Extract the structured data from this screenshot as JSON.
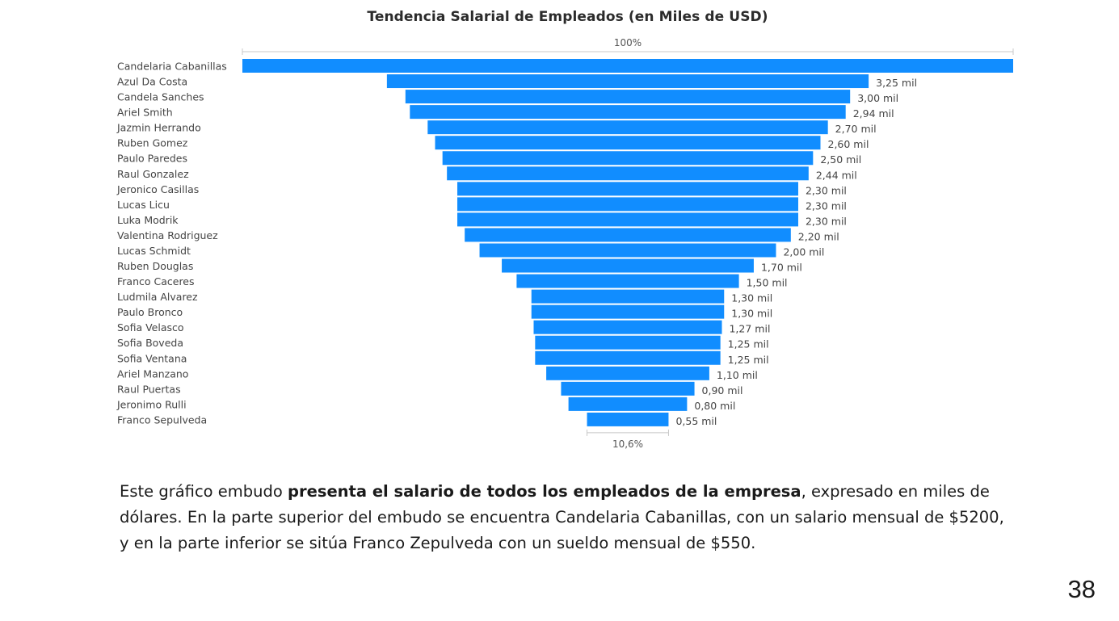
{
  "chart_data": {
    "type": "funnel",
    "title": "Tendencia Salarial de Empleados (en Miles de USD)",
    "unit": "mil",
    "bar_color": "#118DFF",
    "top_percent_label": "100%",
    "bottom_percent_label": "10,6%",
    "categories": [
      "Candelaria Cabanillas",
      "Azul Da Costa",
      "Candela Sanches",
      "Ariel Smith",
      "Jazmin Herrando",
      "Ruben Gomez",
      "Paulo Paredes",
      "Raul Gonzalez",
      "Jeronico Casillas",
      "Lucas Licu",
      "Luka Modrik",
      "Valentina Rodriguez",
      "Lucas Schmidt",
      "Ruben Douglas",
      "Franco Caceres",
      "Ludmila Alvarez",
      "Paulo Bronco",
      "Sofia Velasco",
      "Sofia Boveda",
      "Sofia Ventana",
      "Ariel Manzano",
      "Raul Puertas",
      "Jeronimo Rulli",
      "Franco Sepulveda"
    ],
    "values": [
      5.2,
      3.25,
      3.0,
      2.94,
      2.7,
      2.6,
      2.5,
      2.44,
      2.3,
      2.3,
      2.3,
      2.2,
      2.0,
      1.7,
      1.5,
      1.3,
      1.3,
      1.27,
      1.25,
      1.25,
      1.1,
      0.9,
      0.8,
      0.55
    ],
    "value_labels": [
      "",
      "3,25 mil",
      "3,00 mil",
      "2,94 mil",
      "2,70 mil",
      "2,60 mil",
      "2,50 mil",
      "2,44 mil",
      "2,30 mil",
      "2,30 mil",
      "2,30 mil",
      "2,20 mil",
      "2,00 mil",
      "1,70 mil",
      "1,50 mil",
      "1,30 mil",
      "1,30 mil",
      "1,27 mil",
      "1,25 mil",
      "1,25 mil",
      "1,10 mil",
      "0,90 mil",
      "0,80 mil",
      "0,55 mil"
    ]
  },
  "description": {
    "part1": "Este gráfico embudo ",
    "bold": "presenta el salario de todos los empleados de la empresa",
    "part2": ", expresado en miles de dólares. En la parte superior del embudo se encuentra Candelaria Cabanillas, con un salario mensual de $5200, y en la parte inferior se sitúa Franco Zepulveda con un sueldo mensual de $550."
  },
  "page_number": "38"
}
